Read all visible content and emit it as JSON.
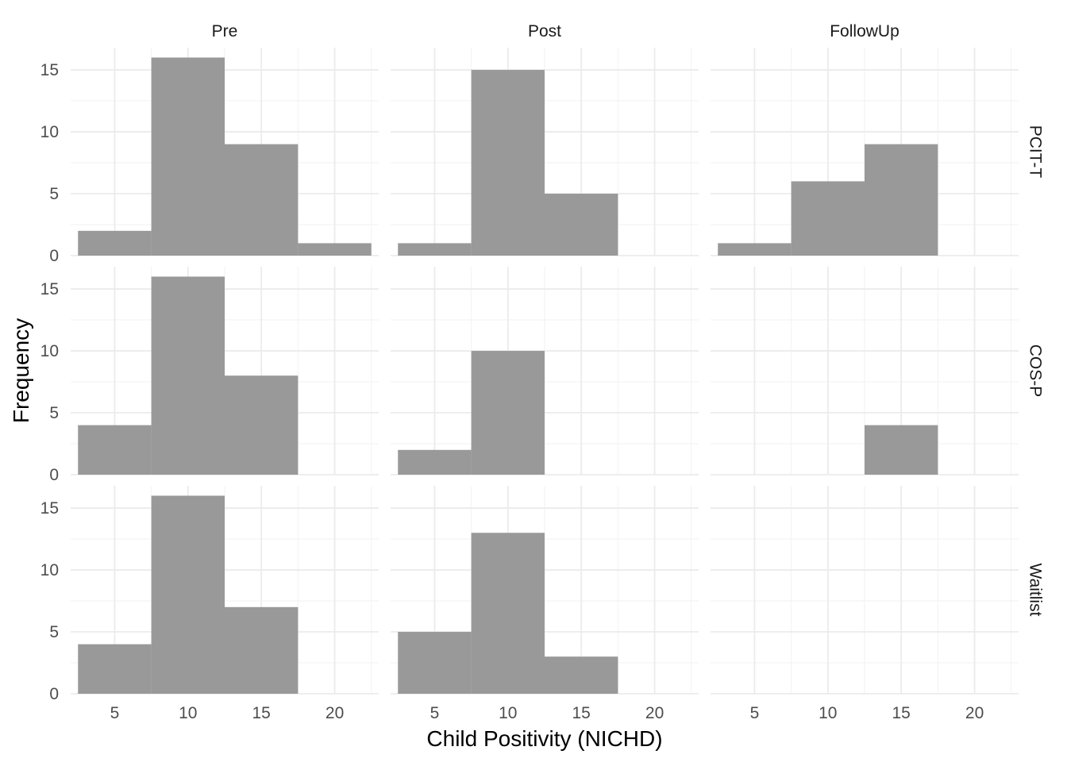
{
  "chart_data": {
    "type": "bar",
    "subtype": "faceted-histogram",
    "xlabel": "Child Positivity (NICHD)",
    "ylabel": "Frequency",
    "columns": [
      "Pre",
      "Post",
      "FollowUp"
    ],
    "rows": [
      "PCIT-T",
      "COS-P",
      "Waitlist"
    ],
    "xlim": [
      2,
      23
    ],
    "ylim": [
      0,
      16.8
    ],
    "x_ticks": [
      5,
      10,
      15,
      20
    ],
    "y_ticks": [
      0,
      5,
      10,
      15
    ],
    "bin_width": 5,
    "bar_color": "#999999",
    "panel_background": "#ffffff",
    "grid": true,
    "legend": "none",
    "panels": [
      {
        "row": "PCIT-T",
        "col": "Pre",
        "bins": [
          {
            "x": 5,
            "count": 2
          },
          {
            "x": 10,
            "count": 16
          },
          {
            "x": 15,
            "count": 9
          },
          {
            "x": 20,
            "count": 1
          }
        ]
      },
      {
        "row": "PCIT-T",
        "col": "Post",
        "bins": [
          {
            "x": 5,
            "count": 1
          },
          {
            "x": 10,
            "count": 15
          },
          {
            "x": 15,
            "count": 5
          }
        ]
      },
      {
        "row": "PCIT-T",
        "col": "FollowUp",
        "bins": [
          {
            "x": 5,
            "count": 1
          },
          {
            "x": 10,
            "count": 6
          },
          {
            "x": 15,
            "count": 9
          }
        ]
      },
      {
        "row": "COS-P",
        "col": "Pre",
        "bins": [
          {
            "x": 5,
            "count": 4
          },
          {
            "x": 10,
            "count": 16
          },
          {
            "x": 15,
            "count": 8
          }
        ]
      },
      {
        "row": "COS-P",
        "col": "Post",
        "bins": [
          {
            "x": 5,
            "count": 2
          },
          {
            "x": 10,
            "count": 10
          }
        ]
      },
      {
        "row": "COS-P",
        "col": "FollowUp",
        "bins": [
          {
            "x": 15,
            "count": 4
          }
        ]
      },
      {
        "row": "Waitlist",
        "col": "Pre",
        "bins": [
          {
            "x": 5,
            "count": 4
          },
          {
            "x": 10,
            "count": 16
          },
          {
            "x": 15,
            "count": 7
          }
        ]
      },
      {
        "row": "Waitlist",
        "col": "Post",
        "bins": [
          {
            "x": 5,
            "count": 5
          },
          {
            "x": 10,
            "count": 13
          },
          {
            "x": 15,
            "count": 3
          }
        ]
      },
      {
        "row": "Waitlist",
        "col": "FollowUp",
        "bins": []
      }
    ]
  }
}
